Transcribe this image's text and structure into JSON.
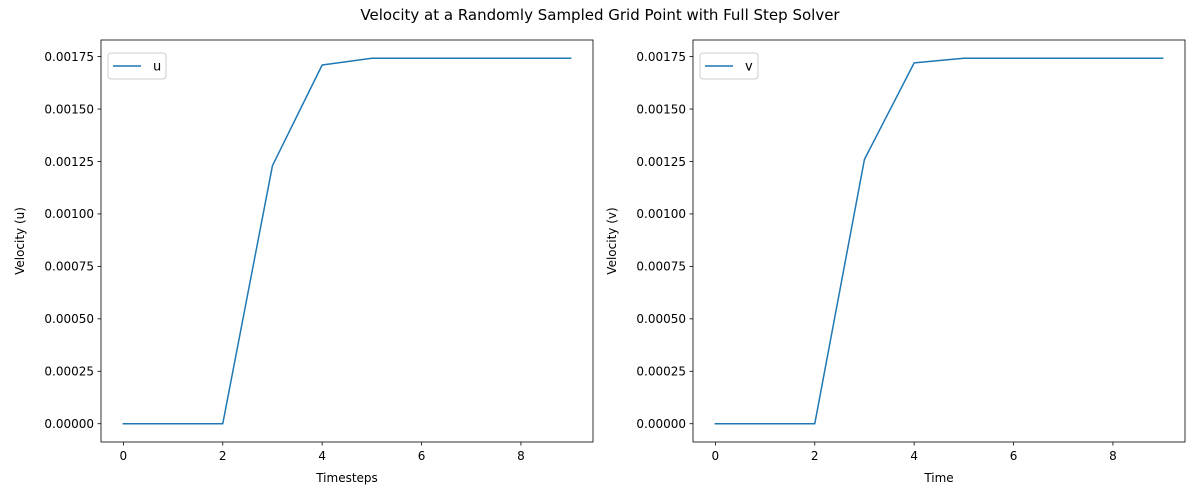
{
  "figure": {
    "title": "Velocity at a Randomly Sampled Grid Point with Full Step Solver"
  },
  "chart_data": [
    {
      "type": "line",
      "title": "",
      "xlabel": "Timesteps",
      "ylabel": "Velocity (u)",
      "xlim": [
        -0.45,
        9.45
      ],
      "ylim": [
        -8.71e-05,
        0.0018291
      ],
      "xticks": [
        0,
        2,
        4,
        6,
        8
      ],
      "xtick_labels": [
        "0",
        "2",
        "4",
        "6",
        "8"
      ],
      "yticks": [
        0,
        0.00025,
        0.0005,
        0.00075,
        0.001,
        0.00125,
        0.0015,
        0.00175
      ],
      "ytick_labels": [
        "0.00000",
        "0.00025",
        "0.00050",
        "0.00075",
        "0.00100",
        "0.00125",
        "0.00150",
        "0.00175"
      ],
      "grid": false,
      "legend": "upper-left",
      "series": [
        {
          "name": "u",
          "color": "#1f77b4",
          "x": [
            0,
            1,
            2,
            3,
            4,
            5,
            6,
            7,
            8,
            9
          ],
          "values": [
            0,
            0,
            0,
            0.00123,
            0.00171,
            0.001742,
            0.001742,
            0.001742,
            0.001742,
            0.001742
          ]
        }
      ]
    },
    {
      "type": "line",
      "title": "",
      "xlabel": "Time",
      "ylabel": "Velocity (v)",
      "xlim": [
        -0.45,
        9.45
      ],
      "ylim": [
        -8.71e-05,
        0.0018291
      ],
      "xticks": [
        0,
        2,
        4,
        6,
        8
      ],
      "xtick_labels": [
        "0",
        "2",
        "4",
        "6",
        "8"
      ],
      "yticks": [
        0,
        0.00025,
        0.0005,
        0.00075,
        0.001,
        0.00125,
        0.0015,
        0.00175
      ],
      "ytick_labels": [
        "0.00000",
        "0.00025",
        "0.00050",
        "0.00075",
        "0.00100",
        "0.00125",
        "0.00150",
        "0.00175"
      ],
      "grid": false,
      "legend": "upper-left",
      "series": [
        {
          "name": "v",
          "color": "#1f77b4",
          "x": [
            0,
            1,
            2,
            3,
            4,
            5,
            6,
            7,
            8,
            9
          ],
          "values": [
            0,
            0,
            0,
            0.00126,
            0.00172,
            0.001742,
            0.001742,
            0.001742,
            0.001742,
            0.001742
          ]
        }
      ]
    }
  ]
}
